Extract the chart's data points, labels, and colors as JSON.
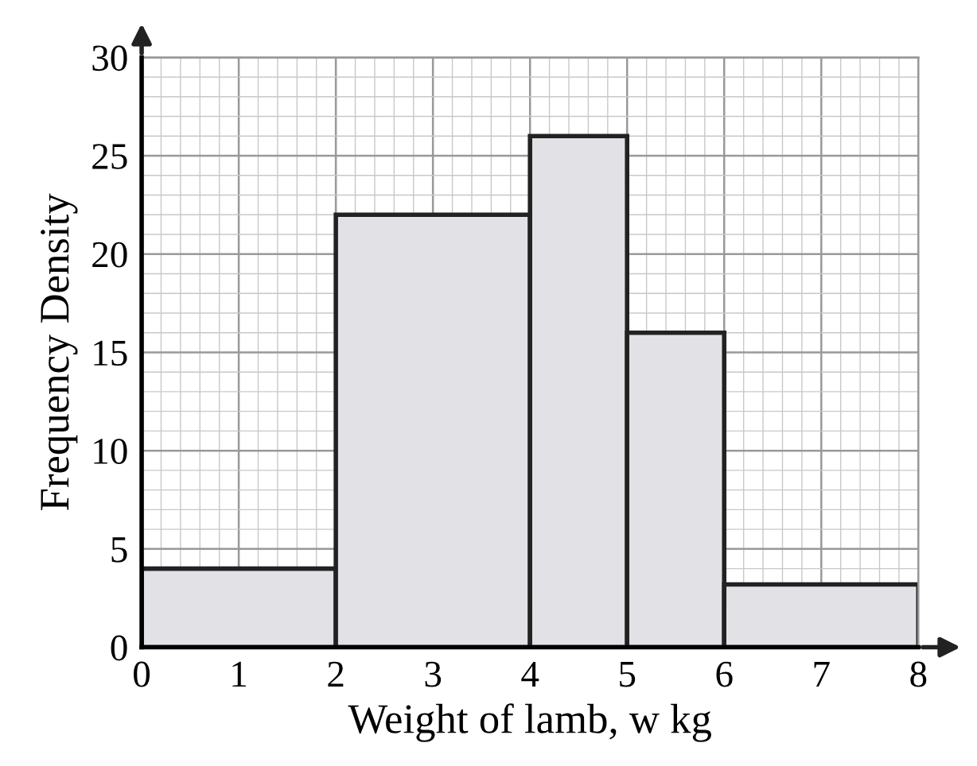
{
  "chart_data": {
    "type": "histogram",
    "xlabel": "Weight of lamb, w kg",
    "ylabel": "Frequency Density",
    "bins": [
      0,
      2,
      4,
      5,
      6,
      8
    ],
    "values": [
      4,
      22,
      26,
      16,
      3.2
    ],
    "color": "#e2e2e6",
    "xlim": [
      0,
      8
    ],
    "ylim": [
      0,
      30
    ],
    "xticks": [
      0,
      1,
      2,
      3,
      4,
      5,
      6,
      7,
      8
    ],
    "yticks": [
      0,
      5,
      10,
      15,
      20,
      25,
      30
    ],
    "grid": true
  }
}
